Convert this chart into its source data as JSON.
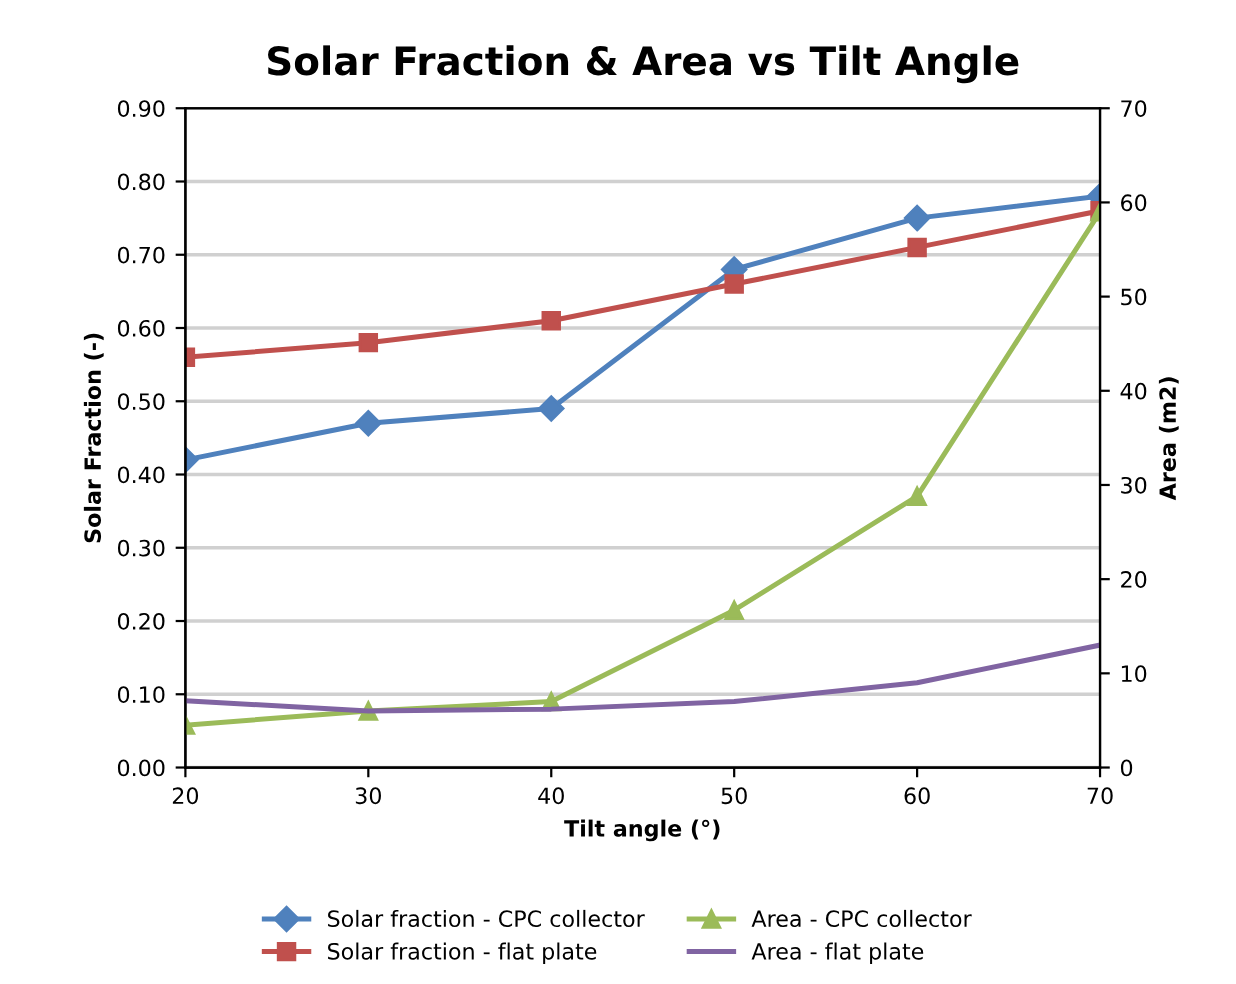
{
  "chart_data": {
    "type": "line",
    "title": "Solar Fraction & Area vs Tilt Angle",
    "xlabel": "Tilt angle (°)",
    "ylabel": "Solar Fraction (-)",
    "y2label": "Area (m2)",
    "x": [
      20,
      30,
      40,
      50,
      60,
      70
    ],
    "series": [
      {
        "name": "Solar fraction - CPC collector",
        "color": "#4f81bd",
        "marker": "diamond",
        "values": [
          0.42,
          0.47,
          0.49,
          0.68,
          0.75,
          0.78
        ]
      },
      {
        "name": "Solar fraction - flat plate",
        "color": "#c0504d",
        "marker": "square",
        "values": [
          0.56,
          0.58,
          0.61,
          0.66,
          0.71,
          0.76
        ]
      },
      {
        "name": "Area - CPC collector",
        "color": "#9bbb59",
        "marker": "triangle",
        "axis": "y2",
        "values": [
          4.5,
          6,
          7,
          16.7,
          28.8,
          59
        ]
      },
      {
        "name": "Area - flat plate",
        "color": "#8064a2",
        "marker": "none",
        "axis": "y2",
        "values": [
          7.1,
          6,
          6.2,
          7,
          9,
          13
        ]
      }
    ],
    "xlim": [
      20,
      70
    ],
    "xticks": [
      20,
      30,
      40,
      50,
      60,
      70
    ],
    "ylim": [
      0,
      0.9
    ],
    "yticks": [
      {
        "value": 0,
        "label": "0.00"
      },
      {
        "value": 0.1,
        "label": "0.10"
      },
      {
        "value": 0.2,
        "label": "0.20"
      },
      {
        "value": 0.3,
        "label": "0.30"
      },
      {
        "value": 0.4,
        "label": "0.40"
      },
      {
        "value": 0.5,
        "label": "0.50"
      },
      {
        "value": 0.6,
        "label": "0.60"
      },
      {
        "value": 0.7,
        "label": "0.70"
      },
      {
        "value": 0.8,
        "label": "0.80"
      },
      {
        "value": 0.9,
        "label": "0.90"
      }
    ],
    "y2lim": [
      0,
      70
    ],
    "y2ticks": [
      0,
      10,
      20,
      30,
      40,
      50,
      60,
      70
    ],
    "grid": "y",
    "legend": "bottom",
    "line_style": "solid"
  }
}
